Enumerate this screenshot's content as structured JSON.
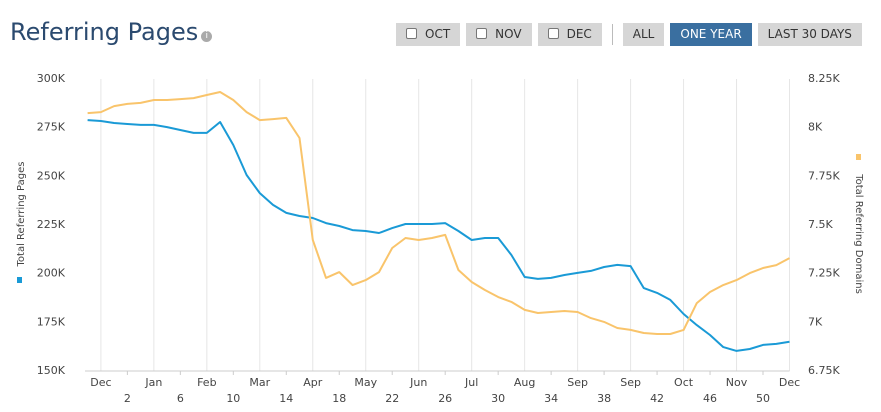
{
  "header": {
    "title": "Referring Pages"
  },
  "buttons": [
    {
      "label": "OCT",
      "checkbox": true
    },
    {
      "label": "NOV",
      "checkbox": true
    },
    {
      "label": "DEC",
      "checkbox": true
    },
    {
      "label": "ALL"
    },
    {
      "label": "ONE YEAR",
      "active": true
    },
    {
      "label": "LAST 30 DAYS"
    }
  ],
  "chart_data": {
    "type": "line",
    "x": [
      -1,
      0,
      1,
      2,
      3,
      4,
      5,
      6,
      7,
      8,
      9,
      10,
      11,
      12,
      13,
      14,
      15,
      16,
      17,
      18,
      19,
      20,
      21,
      22,
      23,
      24,
      25,
      26,
      27,
      28,
      29,
      30,
      31,
      32,
      33,
      34,
      35,
      36,
      37,
      38,
      39,
      40,
      41,
      42,
      43,
      44,
      45,
      46,
      47,
      48,
      49,
      50,
      51,
      52
    ],
    "xlim": [
      -1.2,
      52
    ],
    "xticks": [
      {
        "value": 0,
        "label": "Dec"
      },
      {
        "value": 4,
        "label": "Jan"
      },
      {
        "value": 8,
        "label": "Feb"
      },
      {
        "value": 12,
        "label": "Mar"
      },
      {
        "value": 16,
        "label": "Apr"
      },
      {
        "value": 20,
        "label": "May"
      },
      {
        "value": 24,
        "label": "Jun"
      },
      {
        "value": 28,
        "label": "Jul"
      },
      {
        "value": 32,
        "label": "Aug"
      },
      {
        "value": 36,
        "label": "Sep"
      },
      {
        "value": 40,
        "label": "Sep"
      },
      {
        "value": 44,
        "label": "Oct"
      },
      {
        "value": 48,
        "label": "Nov"
      },
      {
        "value": 52,
        "label": "Dec"
      }
    ],
    "xticks2": [
      2,
      6,
      10,
      14,
      18,
      22,
      26,
      30,
      34,
      38,
      42,
      46,
      50
    ],
    "ylim": [
      150000,
      300000
    ],
    "yticks": [
      {
        "value": 150000,
        "label": "150K"
      },
      {
        "value": 175000,
        "label": "175K"
      },
      {
        "value": 200000,
        "label": "200K"
      },
      {
        "value": 225000,
        "label": "225K"
      },
      {
        "value": 250000,
        "label": "250K"
      },
      {
        "value": 275000,
        "label": "275K"
      },
      {
        "value": 300000,
        "label": "300K"
      }
    ],
    "y2lim": [
      6750,
      8250
    ],
    "y2ticks": [
      {
        "value": 6750,
        "label": "6.75K"
      },
      {
        "value": 7000,
        "label": "7K"
      },
      {
        "value": 7250,
        "label": "7.25K"
      },
      {
        "value": 7500,
        "label": "7.5K"
      },
      {
        "value": 7750,
        "label": "7.75K"
      },
      {
        "value": 8000,
        "label": "8K"
      },
      {
        "value": 8250,
        "label": "8.25K"
      }
    ],
    "grid": "x",
    "series": [
      {
        "name": "Total Referring Pages",
        "color": "#1a9ad6",
        "values": [
          278900,
          278400,
          277400,
          276900,
          276400,
          276400,
          275300,
          273800,
          272300,
          272300,
          277900,
          266100,
          250700,
          241400,
          235300,
          231200,
          229600,
          228600,
          226000,
          224500,
          222400,
          221900,
          220900,
          223400,
          225500,
          225500,
          225500,
          226000,
          221900,
          217300,
          218300,
          218300,
          209600,
          198300,
          197300,
          197800,
          199300,
          200400,
          201400,
          203400,
          204500,
          203900,
          192600,
          190100,
          186500,
          179300,
          173600,
          168500,
          162300,
          160300,
          161300,
          163400,
          163900,
          165000
        ]
      },
      {
        "name": "Total Referring Domains",
        "color": "#f9c46b",
        "axis": "y2",
        "values": [
          8075,
          8080,
          8111,
          8122,
          8127,
          8142,
          8142,
          8147,
          8152,
          8168,
          8183,
          8142,
          8080,
          8039,
          8044,
          8050,
          7947,
          7423,
          7228,
          7258,
          7192,
          7217,
          7258,
          7382,
          7433,
          7423,
          7433,
          7449,
          7269,
          7207,
          7166,
          7130,
          7105,
          7064,
          7048,
          7053,
          7058,
          7053,
          7022,
          7002,
          6971,
          6961,
          6945,
          6940,
          6940,
          6961,
          7099,
          7156,
          7192,
          7217,
          7253,
          7279,
          7294,
          7330
        ]
      }
    ]
  }
}
